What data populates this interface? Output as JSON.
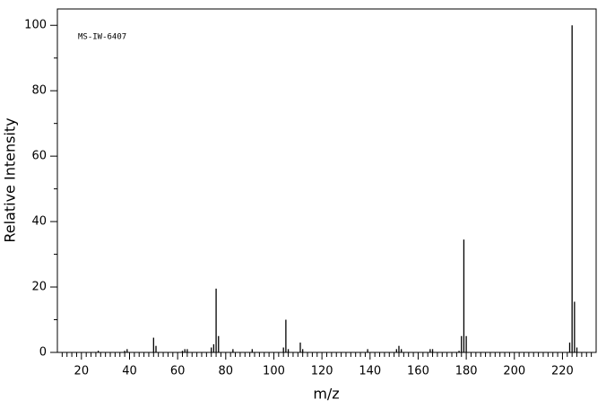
{
  "chart_data": {
    "type": "bar",
    "annotation": "MS-IW-6407",
    "xlabel": "m/z",
    "ylabel": "Relative Intensity",
    "x": [
      27,
      38,
      39,
      50,
      51,
      62,
      63,
      64,
      74,
      75,
      76,
      77,
      83,
      91,
      104,
      105,
      106,
      111,
      112,
      139,
      151,
      152,
      153,
      165,
      166,
      177,
      178,
      179,
      180,
      223,
      224,
      225,
      226
    ],
    "values": [
      0.5,
      0.5,
      1,
      4.5,
      2,
      0.5,
      1,
      1,
      1.5,
      2.5,
      19.5,
      5,
      1,
      1,
      1.5,
      10,
      1,
      3,
      1,
      1,
      1,
      2,
      1,
      1,
      1,
      0.5,
      5,
      34.5,
      5,
      3,
      100,
      15.5,
      1.5
    ],
    "color": "#000000",
    "xlim": [
      10,
      234
    ],
    "ylim": [
      0,
      105
    ],
    "xticks": [
      20,
      40,
      60,
      80,
      100,
      120,
      140,
      160,
      180,
      200,
      220
    ],
    "yticks": [
      0,
      20,
      40,
      60,
      80,
      100
    ],
    "xminorticks": [
      12,
      14,
      16,
      18,
      22,
      24,
      26,
      28,
      30,
      32,
      34,
      36,
      38,
      42,
      44,
      46,
      48,
      50,
      52,
      54,
      56,
      58,
      62,
      64,
      66,
      68,
      70,
      72,
      74,
      76,
      78,
      82,
      84,
      86,
      88,
      90,
      92,
      94,
      96,
      98,
      102,
      104,
      106,
      108,
      110,
      112,
      114,
      116,
      118,
      122,
      124,
      126,
      128,
      130,
      132,
      134,
      136,
      138,
      142,
      144,
      146,
      148,
      150,
      152,
      154,
      156,
      158,
      162,
      164,
      166,
      168,
      170,
      172,
      174,
      176,
      178,
      182,
      184,
      186,
      188,
      190,
      192,
      194,
      196,
      198,
      202,
      204,
      206,
      208,
      210,
      212,
      214,
      216,
      218,
      222,
      224,
      226,
      228,
      230,
      232
    ],
    "yminorticks": [
      10,
      30,
      50,
      70,
      90
    ]
  }
}
